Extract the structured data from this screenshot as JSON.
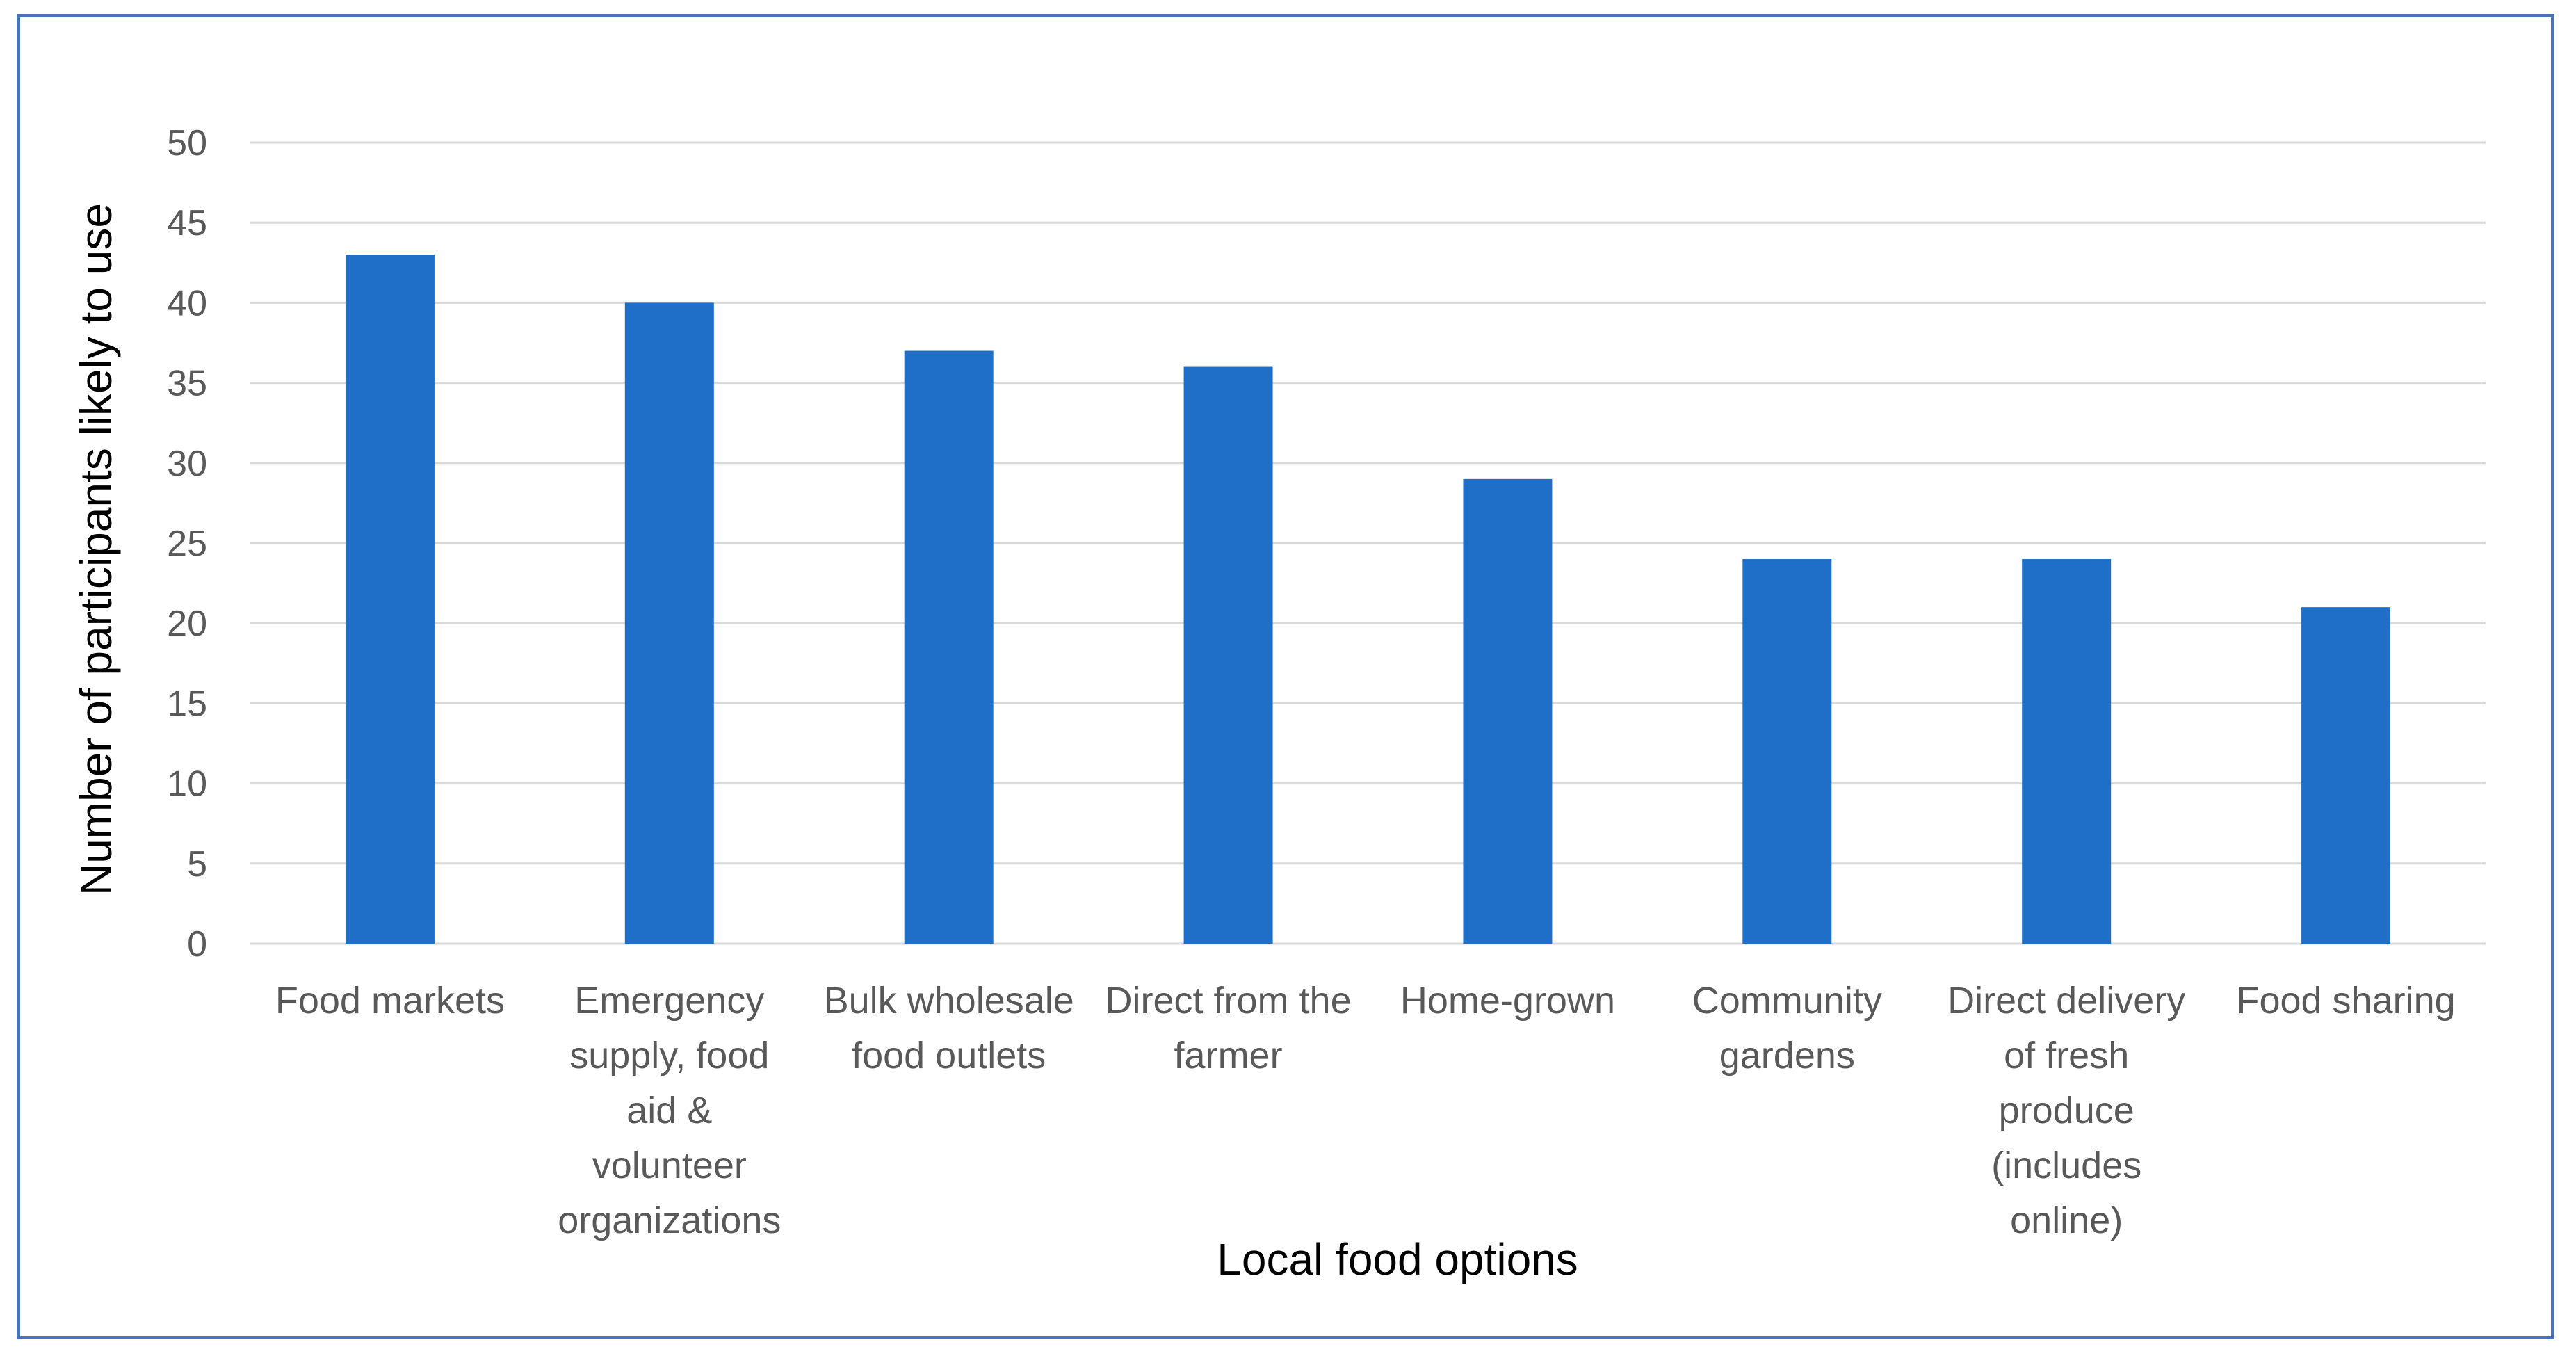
{
  "chart_data": {
    "type": "bar",
    "title": "",
    "xlabel": "Local food options",
    "ylabel": "Number of participants likely to use",
    "ylim": [
      0,
      50
    ],
    "ytick_step": 5,
    "grid": true,
    "bar_color": "#1f6fc8",
    "grid_color": "#d9d9d9",
    "frame_color": "#4a72b8",
    "categories": [
      "Food markets",
      "Emergency supply, food aid & volunteer organizations",
      "Bulk wholesale food outlets",
      "Direct from the farmer",
      "Home-grown",
      "Community gardens",
      "Direct delivery of fresh produce (includes online)",
      "Food sharing"
    ],
    "category_lines": [
      [
        "Food markets"
      ],
      [
        "Emergency",
        "supply, food",
        "aid &",
        "volunteer",
        "organizations"
      ],
      [
        "Bulk wholesale",
        "food outlets"
      ],
      [
        "Direct from the",
        "farmer"
      ],
      [
        "Home-grown"
      ],
      [
        "Community",
        "gardens"
      ],
      [
        "Direct delivery",
        "of fresh",
        "produce",
        "(includes",
        "online)"
      ],
      [
        "Food sharing"
      ]
    ],
    "values": [
      43,
      40,
      37,
      36,
      29,
      24,
      24,
      21
    ]
  }
}
